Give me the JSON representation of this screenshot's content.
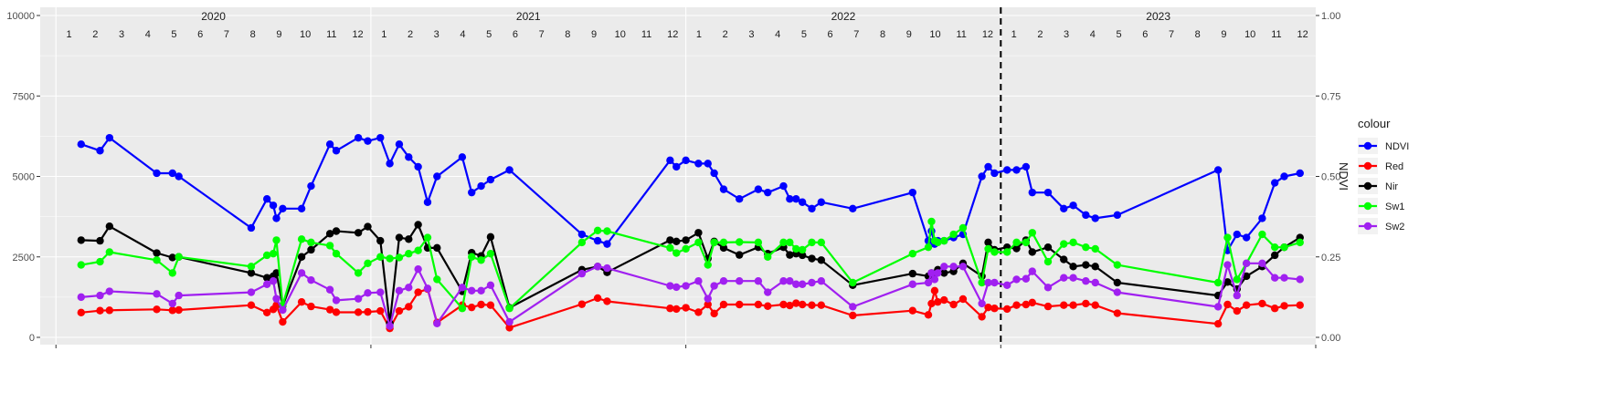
{
  "chart_data": {
    "type": "line",
    "y_left": {
      "range": [
        0,
        10000
      ],
      "ticks": [
        "0",
        "2500",
        "5000",
        "7500",
        "10000"
      ]
    },
    "y_right": {
      "label": "NDVI",
      "range": [
        0,
        1
      ],
      "ticks": [
        "0.00",
        "0.25",
        "0.50",
        "0.75",
        "1.00"
      ]
    },
    "x_range": [
      2019.95,
      2024.0
    ],
    "years": [
      {
        "label": "2020",
        "start": 2020.0
      },
      {
        "label": "2021",
        "start": 2021.0
      },
      {
        "label": "2022",
        "start": 2022.0
      },
      {
        "label": "2023",
        "start": 2023.0
      }
    ],
    "month_labels": [
      "1",
      "2",
      "3",
      "4",
      "5",
      "6",
      "7",
      "8",
      "9",
      "10",
      "11",
      "12"
    ],
    "vline_x": 2023.0,
    "legend": {
      "title": "colour",
      "position": "right"
    },
    "series": [
      {
        "name": "NDVI",
        "color": "#0000ff",
        "axis": "right",
        "x": [
          2020.08,
          2020.14,
          2020.17,
          2020.32,
          2020.37,
          2020.39,
          2020.62,
          2020.67,
          2020.69,
          2020.7,
          2020.72,
          2020.78,
          2020.81,
          2020.87,
          2020.89,
          2020.96,
          2020.99,
          2021.03,
          2021.06,
          2021.09,
          2021.12,
          2021.15,
          2021.18,
          2021.21,
          2021.29,
          2021.32,
          2021.35,
          2021.38,
          2021.44,
          2021.67,
          2021.72,
          2021.75,
          2021.95,
          2021.97,
          2022.0,
          2022.04,
          2022.07,
          2022.09,
          2022.12,
          2022.17,
          2022.23,
          2022.26,
          2022.31,
          2022.33,
          2022.35,
          2022.37,
          2022.4,
          2022.43,
          2022.53,
          2022.72,
          2022.77,
          2022.78,
          2022.79,
          2022.8,
          2022.82,
          2022.85,
          2022.88,
          2022.94,
          2022.96,
          2022.98,
          2023.02,
          2023.05,
          2023.08,
          2023.1,
          2023.15,
          2023.2,
          2023.23,
          2023.27,
          2023.3,
          2023.37,
          2023.69,
          2023.72,
          2023.75,
          2023.78,
          2023.83,
          2023.87,
          2023.9,
          2023.95
        ],
        "values": [
          0.6,
          0.58,
          0.62,
          0.51,
          0.51,
          0.5,
          0.34,
          0.43,
          0.41,
          0.37,
          0.4,
          0.4,
          0.47,
          0.6,
          0.58,
          0.62,
          0.61,
          0.62,
          0.54,
          0.6,
          0.56,
          0.53,
          0.42,
          0.5,
          0.56,
          0.45,
          0.47,
          0.49,
          0.52,
          0.32,
          0.3,
          0.29,
          0.55,
          0.53,
          0.55,
          0.54,
          0.54,
          0.51,
          0.46,
          0.43,
          0.46,
          0.45,
          0.47,
          0.43,
          0.43,
          0.42,
          0.4,
          0.42,
          0.4,
          0.45,
          0.3,
          0.33,
          0.29,
          0.3,
          0.3,
          0.31,
          0.32,
          0.5,
          0.53,
          0.51,
          0.52,
          0.52,
          0.53,
          0.45,
          0.45,
          0.4,
          0.41,
          0.38,
          0.37,
          0.38,
          0.52,
          0.27,
          0.32,
          0.31,
          0.37,
          0.48,
          0.5,
          0.51
        ]
      },
      {
        "name": "Red",
        "color": "#ff0000",
        "axis": "left",
        "x": [
          2020.08,
          2020.14,
          2020.17,
          2020.32,
          2020.37,
          2020.39,
          2020.62,
          2020.67,
          2020.69,
          2020.7,
          2020.72,
          2020.78,
          2020.81,
          2020.87,
          2020.89,
          2020.96,
          2020.99,
          2021.03,
          2021.06,
          2021.09,
          2021.12,
          2021.15,
          2021.18,
          2021.21,
          2021.29,
          2021.32,
          2021.35,
          2021.38,
          2021.44,
          2021.67,
          2021.72,
          2021.75,
          2021.95,
          2021.97,
          2022.0,
          2022.04,
          2022.07,
          2022.09,
          2022.12,
          2022.17,
          2022.23,
          2022.26,
          2022.31,
          2022.33,
          2022.35,
          2022.37,
          2022.4,
          2022.43,
          2022.53,
          2022.72,
          2022.77,
          2022.78,
          2022.79,
          2022.8,
          2022.82,
          2022.85,
          2022.88,
          2022.94,
          2022.96,
          2022.98,
          2023.02,
          2023.05,
          2023.08,
          2023.1,
          2023.15,
          2023.2,
          2023.23,
          2023.27,
          2023.3,
          2023.37,
          2023.69,
          2023.72,
          2023.75,
          2023.78,
          2023.83,
          2023.87,
          2023.9,
          2023.95
        ],
        "values": [
          770,
          830,
          840,
          870,
          840,
          850,
          1000,
          770,
          870,
          1000,
          480,
          1100,
          960,
          860,
          780,
          780,
          790,
          820,
          280,
          820,
          950,
          1400,
          1500,
          460,
          1000,
          930,
          1020,
          1000,
          300,
          1030,
          1220,
          1120,
          900,
          880,
          920,
          780,
          1020,
          740,
          1020,
          1020,
          1020,
          970,
          1020,
          990,
          1060,
          1020,
          1000,
          1000,
          680,
          830,
          700,
          1050,
          1450,
          1100,
          1160,
          1020,
          1190,
          640,
          930,
          900,
          880,
          1000,
          1020,
          1080,
          960,
          1000,
          1000,
          1050,
          1000,
          750,
          420,
          1020,
          820,
          1000,
          1050,
          900,
          980,
          1000
        ]
      },
      {
        "name": "Nir",
        "color": "#000000",
        "axis": "left",
        "x": [
          2020.08,
          2020.14,
          2020.17,
          2020.32,
          2020.37,
          2020.39,
          2020.62,
          2020.67,
          2020.69,
          2020.7,
          2020.72,
          2020.78,
          2020.81,
          2020.87,
          2020.89,
          2020.96,
          2020.99,
          2021.03,
          2021.06,
          2021.09,
          2021.12,
          2021.15,
          2021.18,
          2021.21,
          2021.29,
          2021.32,
          2021.35,
          2021.38,
          2021.44,
          2021.67,
          2021.72,
          2021.75,
          2021.95,
          2021.97,
          2022.0,
          2022.04,
          2022.07,
          2022.09,
          2022.12,
          2022.17,
          2022.23,
          2022.26,
          2022.31,
          2022.33,
          2022.35,
          2022.37,
          2022.4,
          2022.43,
          2022.53,
          2022.72,
          2022.77,
          2022.78,
          2022.79,
          2022.8,
          2022.82,
          2022.85,
          2022.88,
          2022.94,
          2022.96,
          2022.98,
          2023.02,
          2023.05,
          2023.08,
          2023.1,
          2023.15,
          2023.2,
          2023.23,
          2023.27,
          2023.3,
          2023.37,
          2023.69,
          2023.72,
          2023.75,
          2023.78,
          2023.83,
          2023.87,
          2023.9,
          2023.95
        ],
        "values": [
          3020,
          3000,
          3450,
          2620,
          2480,
          2500,
          2000,
          1850,
          1900,
          2000,
          980,
          2500,
          2720,
          3220,
          3300,
          3250,
          3440,
          3000,
          440,
          3100,
          3050,
          3500,
          2780,
          2780,
          1430,
          2630,
          2530,
          3120,
          920,
          2100,
          2200,
          2020,
          3020,
          2980,
          3020,
          3250,
          2450,
          2980,
          2780,
          2560,
          2800,
          2600,
          2800,
          2560,
          2600,
          2550,
          2450,
          2400,
          1620,
          1980,
          1900,
          2000,
          1950,
          2100,
          2000,
          2050,
          2300,
          1900,
          2950,
          2720,
          2800,
          2760,
          3020,
          2650,
          2800,
          2420,
          2200,
          2250,
          2200,
          1700,
          1300,
          1720,
          1500,
          1900,
          2200,
          2550,
          2800,
          3100
        ]
      },
      {
        "name": "Sw1",
        "color": "#00ff00",
        "axis": "left",
        "x": [
          2020.08,
          2020.14,
          2020.17,
          2020.32,
          2020.37,
          2020.39,
          2020.62,
          2020.67,
          2020.69,
          2020.7,
          2020.72,
          2020.78,
          2020.81,
          2020.87,
          2020.89,
          2020.96,
          2020.99,
          2021.03,
          2021.06,
          2021.09,
          2021.12,
          2021.15,
          2021.18,
          2021.21,
          2021.29,
          2021.32,
          2021.35,
          2021.38,
          2021.44,
          2021.67,
          2021.72,
          2021.75,
          2021.95,
          2021.97,
          2022.0,
          2022.04,
          2022.07,
          2022.09,
          2022.12,
          2022.17,
          2022.23,
          2022.26,
          2022.31,
          2022.33,
          2022.35,
          2022.37,
          2022.4,
          2022.43,
          2022.53,
          2022.72,
          2022.77,
          2022.78,
          2022.79,
          2022.8,
          2022.82,
          2022.85,
          2022.88,
          2022.94,
          2022.96,
          2022.98,
          2023.02,
          2023.05,
          2023.08,
          2023.1,
          2023.15,
          2023.2,
          2023.23,
          2023.27,
          2023.3,
          2023.37,
          2023.69,
          2023.72,
          2023.75,
          2023.78,
          2023.83,
          2023.87,
          2023.9,
          2023.95
        ],
        "values": [
          2250,
          2350,
          2650,
          2400,
          2000,
          2500,
          2200,
          2550,
          2600,
          3020,
          1000,
          3050,
          2950,
          2850,
          2600,
          2000,
          2300,
          2500,
          2450,
          2480,
          2600,
          2700,
          3100,
          1800,
          900,
          2500,
          2400,
          2600,
          900,
          2950,
          3320,
          3300,
          2780,
          2620,
          2750,
          2950,
          2250,
          2950,
          2950,
          2960,
          2950,
          2500,
          2950,
          2950,
          2750,
          2720,
          2950,
          2950,
          1700,
          2600,
          2800,
          3600,
          3000,
          2950,
          3000,
          3200,
          3400,
          1700,
          2750,
          2650,
          2650,
          2950,
          2950,
          3250,
          2350,
          2900,
          2950,
          2800,
          2750,
          2250,
          1700,
          3100,
          1800,
          2300,
          3200,
          2800,
          2800,
          2950
        ]
      },
      {
        "name": "Sw2",
        "color": "#a020f0",
        "axis": "left",
        "x": [
          2020.08,
          2020.14,
          2020.17,
          2020.32,
          2020.37,
          2020.39,
          2020.62,
          2020.67,
          2020.69,
          2020.7,
          2020.72,
          2020.78,
          2020.81,
          2020.87,
          2020.89,
          2020.96,
          2020.99,
          2021.03,
          2021.06,
          2021.09,
          2021.12,
          2021.15,
          2021.18,
          2021.21,
          2021.29,
          2021.32,
          2021.35,
          2021.38,
          2021.44,
          2021.67,
          2021.72,
          2021.75,
          2021.95,
          2021.97,
          2022.0,
          2022.04,
          2022.07,
          2022.09,
          2022.12,
          2022.17,
          2022.23,
          2022.26,
          2022.31,
          2022.33,
          2022.35,
          2022.37,
          2022.4,
          2022.43,
          2022.53,
          2022.72,
          2022.77,
          2022.78,
          2022.79,
          2022.8,
          2022.82,
          2022.85,
          2022.88,
          2022.94,
          2022.96,
          2022.98,
          2023.02,
          2023.05,
          2023.08,
          2023.1,
          2023.15,
          2023.2,
          2023.23,
          2023.27,
          2023.3,
          2023.37,
          2023.69,
          2023.72,
          2023.75,
          2023.78,
          2023.83,
          2023.87,
          2023.9,
          2023.95
        ],
        "values": [
          1250,
          1300,
          1430,
          1350,
          1050,
          1300,
          1400,
          1650,
          1750,
          1200,
          850,
          2000,
          1780,
          1480,
          1150,
          1200,
          1380,
          1400,
          350,
          1450,
          1550,
          2120,
          1520,
          430,
          1550,
          1450,
          1450,
          1620,
          480,
          1980,
          2200,
          2150,
          1600,
          1560,
          1600,
          1750,
          1200,
          1600,
          1750,
          1750,
          1750,
          1400,
          1750,
          1750,
          1650,
          1650,
          1700,
          1750,
          950,
          1650,
          1700,
          2000,
          1800,
          2000,
          2200,
          2200,
          2200,
          1050,
          1700,
          1700,
          1620,
          1800,
          1820,
          2050,
          1550,
          1850,
          1850,
          1750,
          1700,
          1400,
          950,
          2250,
          1300,
          2300,
          2300,
          1850,
          1850,
          1800
        ]
      }
    ]
  }
}
